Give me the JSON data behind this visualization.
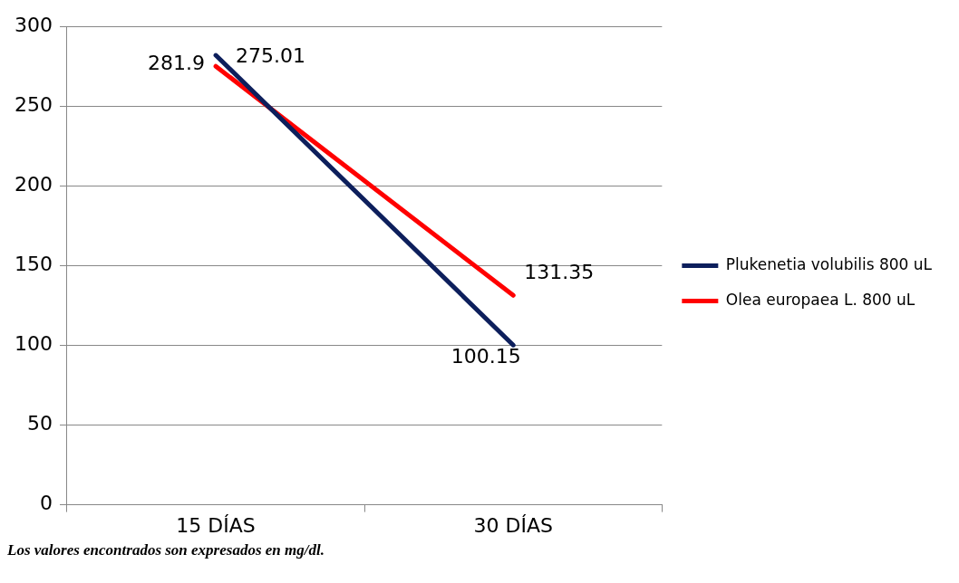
{
  "chart_data": {
    "type": "line",
    "categories": [
      "15 DÍAS",
      "30 DÍAS"
    ],
    "series": [
      {
        "name": "Plukenetia volubilis 800 uL",
        "color": "#0d1f5c",
        "values": [
          281.9,
          100.15
        ]
      },
      {
        "name": "Olea europaea L. 800 uL",
        "color": "#ff0000",
        "values": [
          275.01,
          131.35
        ]
      }
    ],
    "ylim": [
      0,
      300
    ],
    "yticks": [
      0,
      50,
      100,
      150,
      200,
      250,
      300
    ],
    "grid": "y",
    "legend": "right",
    "marker": "none",
    "line_style": "solid",
    "data_labels": true,
    "annotations": [
      "Los valores encontrados son expresados en mg/dl."
    ]
  }
}
